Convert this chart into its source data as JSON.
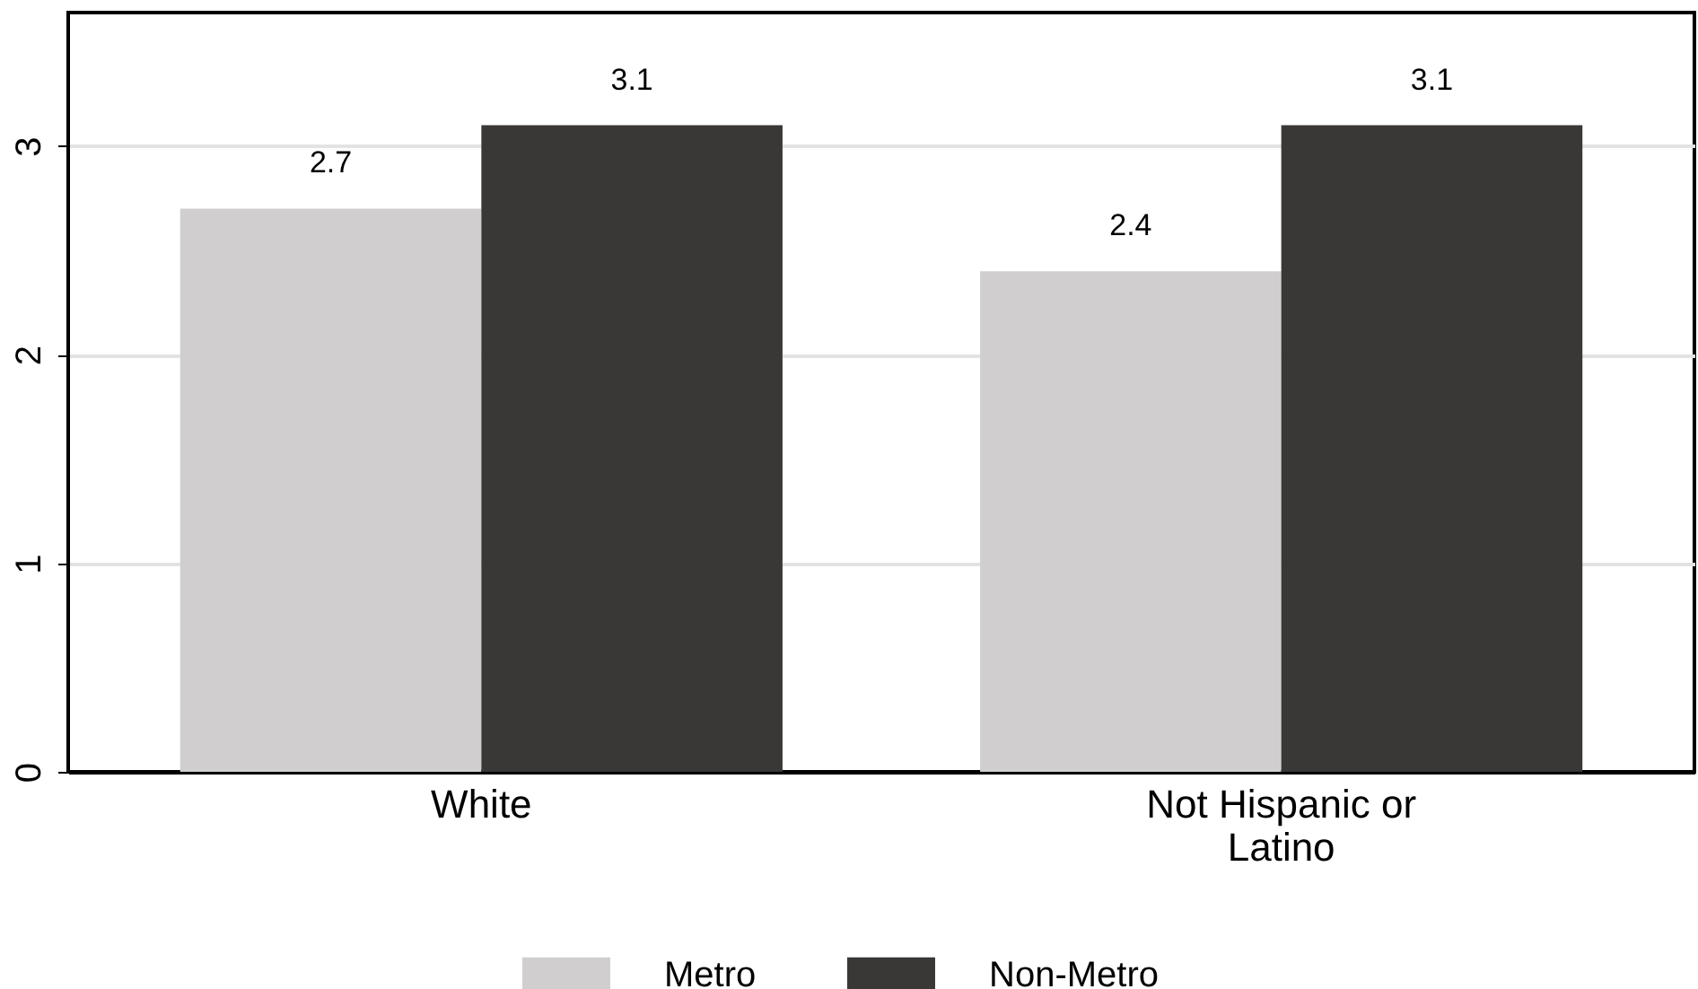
{
  "chart_data": {
    "type": "bar",
    "categories": [
      "White",
      "Not Hispanic or Latino"
    ],
    "series": [
      {
        "name": "Metro",
        "color": "#d0cecf",
        "values": [
          2.7,
          2.4
        ]
      },
      {
        "name": "Non-Metro",
        "color": "#3a3836",
        "values": [
          3.1,
          3.1
        ]
      }
    ],
    "ylim": [
      0,
      3.64
    ],
    "yticks": [
      0,
      1,
      2,
      3
    ],
    "grid": "y",
    "legend": "bottom",
    "data_labels": true
  }
}
